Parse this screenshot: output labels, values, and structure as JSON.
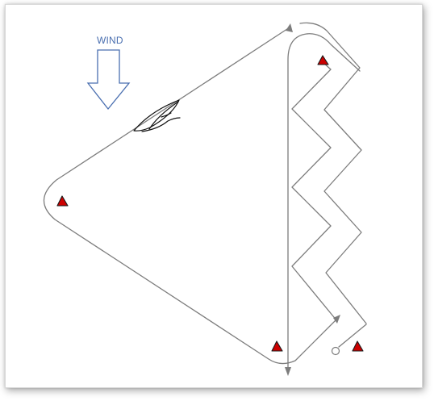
{
  "wind": {
    "label": "WIND",
    "arrow_direction": "down",
    "arrow_color": "#4a6fb0"
  },
  "colors": {
    "course_line": "#7d7d7d",
    "mark_fill": "#cc0000",
    "mark_outline": "#1a1a1a",
    "boat_outline": "#111111"
  },
  "course": {
    "marks_count": 4,
    "legs": [
      "beat",
      "reach",
      "reach",
      "run",
      "beat"
    ]
  },
  "icons": {
    "mark": "triangle-buoy-icon",
    "boat": "sailboat-icon",
    "start": "start-circle-icon",
    "arrow": "arrowhead-icon"
  }
}
